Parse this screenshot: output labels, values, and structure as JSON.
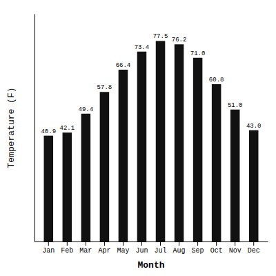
{
  "chart_data": {
    "type": "bar",
    "categories": [
      "Jan",
      "Feb",
      "Mar",
      "Apr",
      "May",
      "Jun",
      "Jul",
      "Aug",
      "Sep",
      "Oct",
      "Nov",
      "Dec"
    ],
    "values": [
      40.9,
      42.1,
      49.4,
      57.8,
      66.4,
      73.4,
      77.5,
      76.2,
      71.0,
      60.8,
      51.0,
      43.0
    ],
    "value_labels": [
      "40.9",
      "42.1",
      "49.4",
      "57.8",
      "66.4",
      "73.4",
      "77.5",
      "76.2",
      "71.0",
      "60.8",
      "51.0",
      "43.0"
    ],
    "color": "#111111",
    "xlabel": "Month",
    "ylabel": "Temperature (F)",
    "ylim": [
      0,
      88
    ],
    "yticks": [],
    "data_labels": true,
    "tick_labels": "x"
  }
}
